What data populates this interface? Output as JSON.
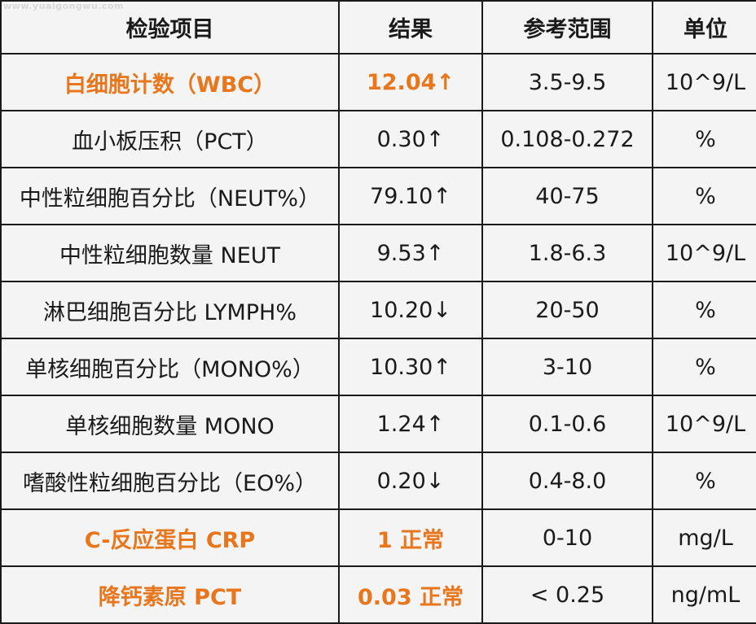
{
  "watermark": "www.yuaigongwu.com",
  "table": {
    "headers": [
      "检验项目",
      "结果",
      "参考范围",
      "单位"
    ],
    "rows": [
      {
        "name": "白细胞计数（WBC）",
        "result": "12.04↑",
        "range": "3.5-9.5",
        "unit": "10^9/L",
        "highlight": true
      },
      {
        "name": "血小板压积（PCT）",
        "result": "0.30↑",
        "range": "0.108-0.272",
        "unit": "%",
        "highlight": false
      },
      {
        "name": "中性粒细胞百分比（NEUT%）",
        "result": "79.10↑",
        "range": "40-75",
        "unit": "%",
        "highlight": false
      },
      {
        "name": "中性粒细胞数量 NEUT",
        "result": "9.53↑",
        "range": "1.8-6.3",
        "unit": "10^9/L",
        "highlight": false
      },
      {
        "name": "淋巴细胞百分比 LYMPH%",
        "result": "10.20↓",
        "range": "20-50",
        "unit": "%",
        "highlight": false
      },
      {
        "name": "单核细胞百分比（MONO%）",
        "result": "10.30↑",
        "range": "3-10",
        "unit": "%",
        "highlight": false
      },
      {
        "name": "单核细胞数量 MONO",
        "result": "1.24↑",
        "range": "0.1-0.6",
        "unit": "10^9/L",
        "highlight": false
      },
      {
        "name": "嗜酸性粒细胞百分比（EO%）",
        "result": "0.20↓",
        "range": "0.4-8.0",
        "unit": "%",
        "highlight": false
      },
      {
        "name": "C-反应蛋白 CRP",
        "result": "1 正常",
        "range": "0-10",
        "unit": "mg/L",
        "highlight": true
      },
      {
        "name": "降钙素原 PCT",
        "result": "0.03 正常",
        "range": "< 0.25",
        "unit": "ng/mL",
        "highlight": true
      }
    ]
  },
  "colors": {
    "highlight": "#e8761c",
    "text": "#1a1a1a",
    "background": "#f4f4f4",
    "border": "#1a1a1a"
  }
}
